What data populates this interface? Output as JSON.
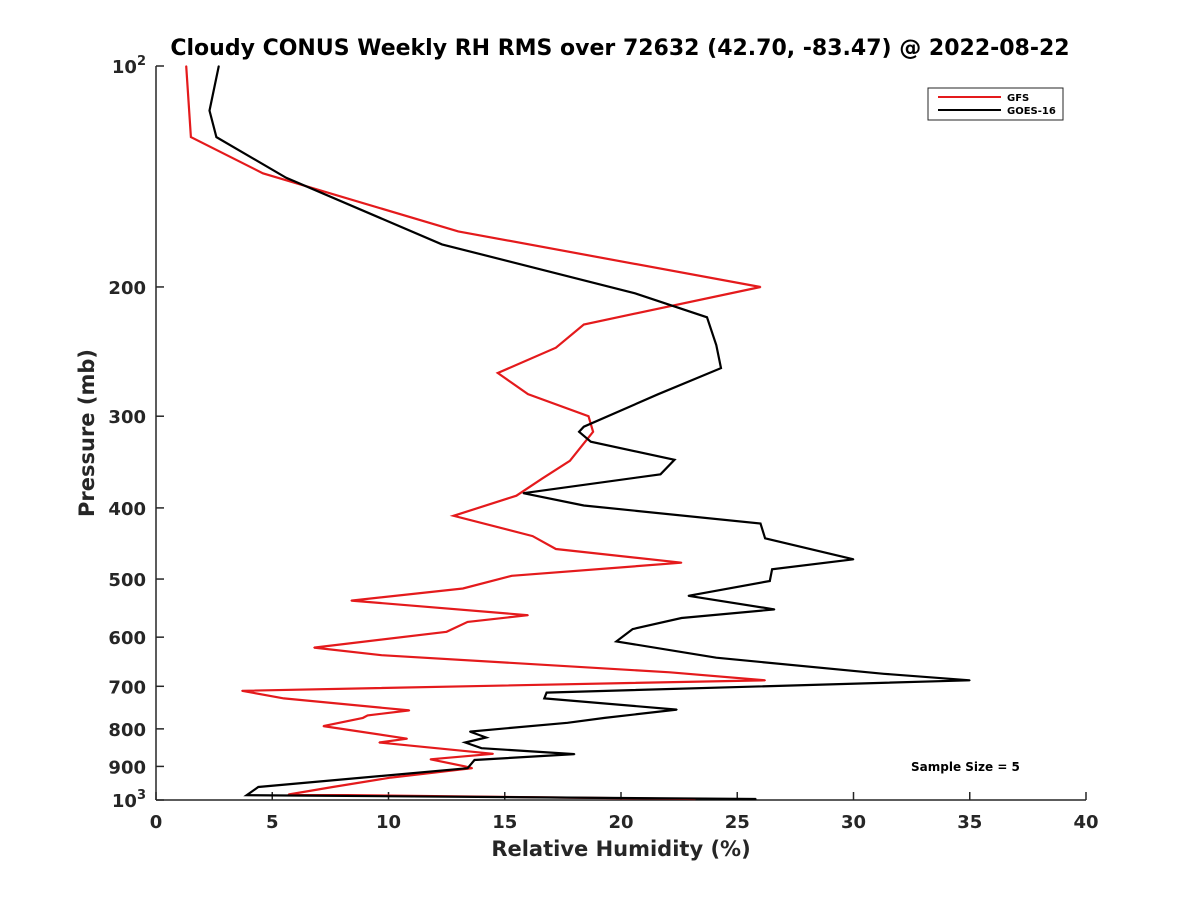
{
  "chart_data": {
    "type": "line",
    "title": "Cloudy CONUS Weekly RH RMS over 72632 (42.70, -83.47) @ 2022-08-22",
    "xlabel": "Relative Humidity (%)",
    "ylabel": "Pressure (mb)",
    "xlim": [
      0,
      40
    ],
    "ylim": [
      100,
      1000
    ],
    "y_scale": "log",
    "y_reversed": true,
    "x_ticks": [
      "0",
      "5",
      "10",
      "15",
      "20",
      "25",
      "30",
      "35",
      "40"
    ],
    "y_ticks": [
      {
        "value": 100,
        "base": "10",
        "exp": "2"
      },
      {
        "value": 200,
        "label": "200"
      },
      {
        "value": 300,
        "label": "300"
      },
      {
        "value": 400,
        "label": "400"
      },
      {
        "value": 500,
        "label": "500"
      },
      {
        "value": 600,
        "label": "600"
      },
      {
        "value": 700,
        "label": "700"
      },
      {
        "value": 800,
        "label": "800"
      },
      {
        "value": 900,
        "label": "900"
      },
      {
        "value": 1000,
        "base": "10",
        "exp": "3"
      }
    ],
    "grid": false,
    "legend_position": "top-right",
    "annotation": "Sample Size = 5",
    "series": [
      {
        "name": "GFS",
        "color": "#e41a1c",
        "points": [
          [
            1.3,
            100
          ],
          [
            1.5,
            125
          ],
          [
            4.6,
            140
          ],
          [
            13.0,
            168
          ],
          [
            26.0,
            200
          ],
          [
            18.4,
            225
          ],
          [
            17.2,
            242
          ],
          [
            14.7,
            262
          ],
          [
            16.0,
            280
          ],
          [
            18.6,
            300
          ],
          [
            18.8,
            315
          ],
          [
            17.8,
            345
          ],
          [
            16.6,
            365
          ],
          [
            15.5,
            385
          ],
          [
            12.8,
            410
          ],
          [
            16.2,
            437
          ],
          [
            17.2,
            455
          ],
          [
            22.6,
            475
          ],
          [
            15.3,
            495
          ],
          [
            13.2,
            515
          ],
          [
            8.4,
            535
          ],
          [
            16.0,
            560
          ],
          [
            13.4,
            572
          ],
          [
            12.5,
            590
          ],
          [
            6.8,
            620
          ],
          [
            9.7,
            635
          ],
          [
            22.1,
            670
          ],
          [
            26.2,
            687
          ],
          [
            3.7,
            710
          ],
          [
            5.5,
            727
          ],
          [
            10.9,
            755
          ],
          [
            9.1,
            767
          ],
          [
            8.9,
            773
          ],
          [
            7.2,
            793
          ],
          [
            10.8,
            825
          ],
          [
            9.6,
            835
          ],
          [
            14.5,
            865
          ],
          [
            11.8,
            880
          ],
          [
            13.3,
            900
          ],
          [
            13.6,
            905
          ],
          [
            10.1,
            932
          ],
          [
            7.6,
            960
          ],
          [
            5.7,
            983
          ],
          [
            23.2,
            997
          ]
        ]
      },
      {
        "name": "GOES-16",
        "color": "#000000",
        "points": [
          [
            2.7,
            100
          ],
          [
            2.3,
            115
          ],
          [
            2.6,
            125
          ],
          [
            5.6,
            142
          ],
          [
            12.3,
            175
          ],
          [
            20.6,
            204
          ],
          [
            23.7,
            220
          ],
          [
            24.1,
            240
          ],
          [
            24.3,
            258
          ],
          [
            21.6,
            280
          ],
          [
            18.4,
            310
          ],
          [
            18.2,
            315
          ],
          [
            18.7,
            325
          ],
          [
            22.3,
            344
          ],
          [
            21.7,
            360
          ],
          [
            15.8,
            382
          ],
          [
            18.4,
            397
          ],
          [
            26.0,
            420
          ],
          [
            26.2,
            440
          ],
          [
            30.0,
            470
          ],
          [
            26.5,
            485
          ],
          [
            26.4,
            503
          ],
          [
            22.9,
            527
          ],
          [
            26.6,
            550
          ],
          [
            22.6,
            565
          ],
          [
            20.5,
            585
          ],
          [
            19.8,
            608
          ],
          [
            24.1,
            640
          ],
          [
            31.3,
            673
          ],
          [
            35.0,
            687
          ],
          [
            16.8,
            714
          ],
          [
            16.7,
            727
          ],
          [
            22.4,
            753
          ],
          [
            19.3,
            773
          ],
          [
            17.7,
            785
          ],
          [
            13.5,
            807
          ],
          [
            14.2,
            822
          ],
          [
            13.3,
            835
          ],
          [
            14.0,
            850
          ],
          [
            18.0,
            866
          ],
          [
            13.7,
            882
          ],
          [
            13.4,
            905
          ],
          [
            4.4,
            960
          ],
          [
            3.9,
            985
          ],
          [
            25.8,
            997
          ]
        ]
      }
    ]
  }
}
